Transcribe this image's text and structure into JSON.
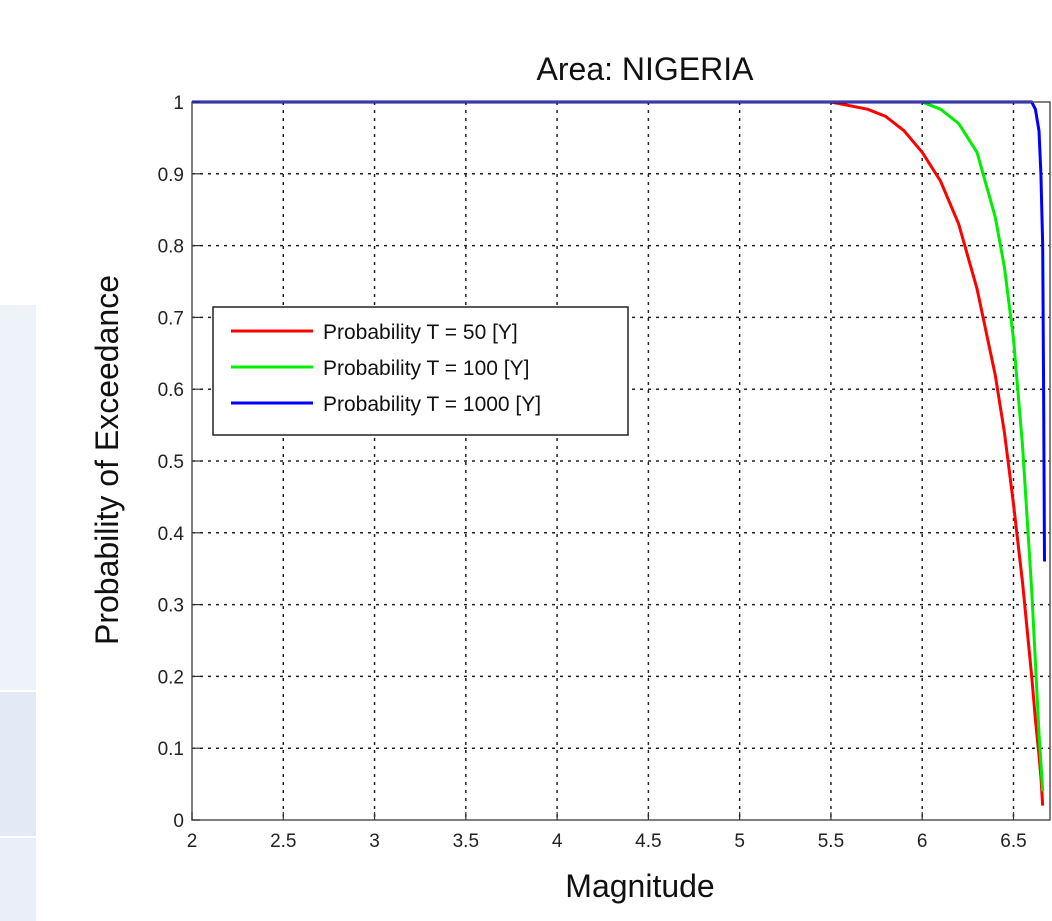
{
  "chart_data": {
    "type": "line",
    "title": "Area: NIGERIA",
    "xlabel": "Magnitude",
    "ylabel": "Probability of Exceedance",
    "xlim": [
      2,
      6.7
    ],
    "ylim": [
      0,
      1
    ],
    "xticks": [
      2,
      2.5,
      3,
      3.5,
      4,
      4.5,
      5,
      5.5,
      6,
      6.5
    ],
    "xtick_labels": [
      "2",
      "2.5",
      "3",
      "3.5",
      "4",
      "4.5",
      "5",
      "5.5",
      "6",
      "6.5"
    ],
    "yticks": [
      0,
      0.1,
      0.2,
      0.3,
      0.4,
      0.5,
      0.6,
      0.7,
      0.8,
      0.9,
      1
    ],
    "ytick_labels": [
      "0",
      "0.1",
      "0.2",
      "0.3",
      "0.4",
      "0.5",
      "0.6",
      "0.7",
      "0.8",
      "0.9",
      "1"
    ],
    "grid": true,
    "legend_position": "center-left",
    "series": [
      {
        "name": "Probability T = 50 [Y]",
        "color": "#ff0000",
        "x": [
          2,
          5.5,
          5.7,
          5.8,
          5.9,
          6.0,
          6.1,
          6.2,
          6.3,
          6.4,
          6.45,
          6.5,
          6.55,
          6.6,
          6.62,
          6.64,
          6.65,
          6.66
        ],
        "y": [
          1,
          1,
          0.99,
          0.98,
          0.96,
          0.93,
          0.89,
          0.83,
          0.74,
          0.62,
          0.54,
          0.44,
          0.33,
          0.2,
          0.14,
          0.09,
          0.06,
          0.02
        ]
      },
      {
        "name": "Probability T = 100 [Y]",
        "color": "#00ee00",
        "x": [
          2,
          6.0,
          6.1,
          6.2,
          6.3,
          6.4,
          6.45,
          6.5,
          6.55,
          6.6,
          6.62,
          6.64,
          6.65,
          6.66
        ],
        "y": [
          1,
          1,
          0.99,
          0.97,
          0.93,
          0.84,
          0.77,
          0.67,
          0.52,
          0.32,
          0.22,
          0.12,
          0.08,
          0.04
        ]
      },
      {
        "name": "Probability T = 1000 [Y]",
        "color": "#0000ff",
        "x": [
          2,
          6.55,
          6.6,
          6.62,
          6.64,
          6.65,
          6.66,
          6.665,
          6.67
        ],
        "y": [
          1,
          1,
          1,
          0.99,
          0.96,
          0.9,
          0.8,
          0.6,
          0.36
        ]
      }
    ]
  }
}
